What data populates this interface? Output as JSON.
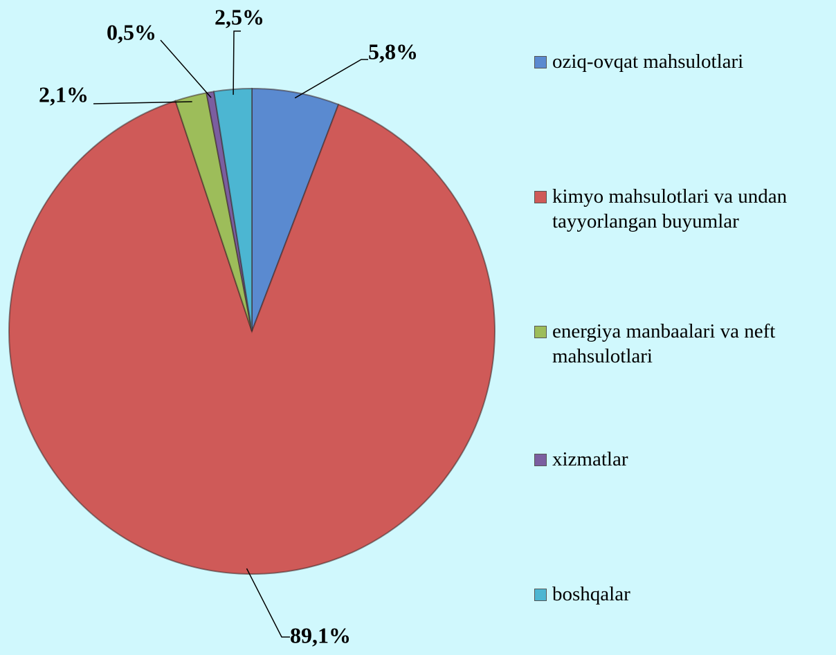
{
  "chart_data": {
    "type": "pie",
    "categories": [
      "oziq-ovqat mahsulotlari",
      "kimyo mahsulotlari va undan tayyorlangan buyumlar",
      "energiya manbaalari va neft mahsulotlari",
      "xizmatlar",
      "boshqalar"
    ],
    "values": [
      5.8,
      89.1,
      2.1,
      0.5,
      2.5
    ],
    "value_labels": [
      "5,8%",
      "89,1%",
      "2,1%",
      "0,5%",
      "2,5%"
    ],
    "colors": [
      "#5a8ad0",
      "#cf5a58",
      "#9dbd5a",
      "#7b5ea0",
      "#4cb6d2"
    ],
    "legend": "right"
  }
}
